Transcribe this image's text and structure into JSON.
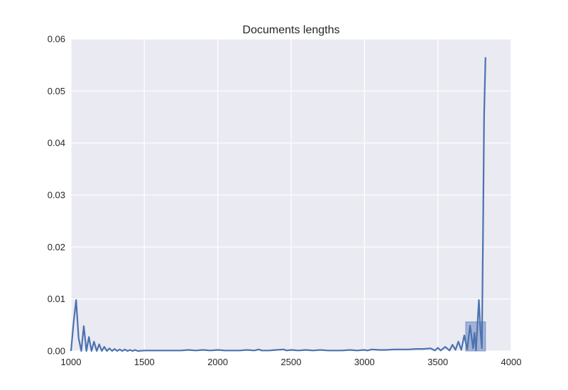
{
  "chart_data": {
    "type": "line",
    "title": "Documents lengths",
    "xlabel": "",
    "ylabel": "",
    "xlim": [
      1000,
      4000
    ],
    "ylim": [
      0,
      0.06
    ],
    "x_ticks": [
      1000,
      1500,
      2000,
      2500,
      3000,
      3500,
      4000
    ],
    "y_ticks": [
      0.0,
      0.01,
      0.02,
      0.03,
      0.04,
      0.05,
      0.06
    ],
    "x_tick_labels": [
      "1000",
      "1500",
      "2000",
      "2500",
      "3000",
      "3500",
      "4000"
    ],
    "y_tick_labels": [
      "0.00",
      "0.01",
      "0.02",
      "0.03",
      "0.04",
      "0.05",
      "0.06"
    ],
    "grid": true,
    "background": "#EAEAF2",
    "grid_color": "#FFFFFF",
    "line_color": "#4C72B0",
    "bar_color": "#4C72B0",
    "bars": [
      {
        "x0": 3690,
        "x1": 3825,
        "height": 0.0056
      }
    ],
    "series": [
      {
        "x": [
          1000,
          1018,
          1035,
          1052,
          1070,
          1087,
          1105,
          1122,
          1140,
          1157,
          1175,
          1192,
          1210,
          1227,
          1245,
          1262,
          1280,
          1297,
          1315,
          1332,
          1350,
          1367,
          1385,
          1402,
          1420,
          1437,
          1455,
          1500,
          1550,
          1600,
          1650,
          1700,
          1750,
          1800,
          1850,
          1900,
          1950,
          2000,
          2050,
          2100,
          2150,
          2200,
          2250,
          2280,
          2300,
          2350,
          2400,
          2450,
          2470,
          2500,
          2550,
          2600,
          2650,
          2700,
          2750,
          2800,
          2850,
          2900,
          2950,
          3000,
          3020,
          3050,
          3100,
          3150,
          3200,
          3250,
          3300,
          3350,
          3400,
          3450,
          3480,
          3500,
          3520,
          3550,
          3580,
          3600,
          3620,
          3640,
          3660,
          3680,
          3700,
          3720,
          3740,
          3750,
          3760,
          3780,
          3790,
          3800,
          3810,
          3815,
          3825
        ],
        "y": [
          0.0,
          0.0055,
          0.0098,
          0.0025,
          0.0,
          0.0048,
          0.0,
          0.0027,
          0.0,
          0.0018,
          0.0,
          0.0013,
          0.0,
          0.0008,
          0.0,
          0.0005,
          0.0,
          0.0004,
          0.0,
          0.0003,
          0.0,
          0.0003,
          0.0,
          0.0002,
          0.0,
          0.0002,
          0.0,
          0.0001,
          0.0001,
          0.0001,
          0.0001,
          0.0001,
          0.0001,
          0.0002,
          0.0001,
          0.0002,
          0.0001,
          0.0002,
          0.0001,
          0.0001,
          0.0001,
          0.0002,
          0.0001,
          0.0003,
          0.0001,
          0.0001,
          0.0002,
          0.0003,
          0.0001,
          0.0002,
          0.0001,
          0.0002,
          0.0001,
          0.0002,
          0.0001,
          0.0001,
          0.0001,
          0.0002,
          0.0001,
          0.0002,
          0.0001,
          0.0003,
          0.0002,
          0.0002,
          0.0003,
          0.0003,
          0.0003,
          0.0004,
          0.0004,
          0.0005,
          0.0001,
          0.0006,
          0.0001,
          0.0008,
          0.0001,
          0.0012,
          0.0002,
          0.0018,
          0.0002,
          0.003,
          0.0003,
          0.0049,
          0.0005,
          0.0035,
          0.0001,
          0.0098,
          0.004,
          0.0005,
          0.028,
          0.045,
          0.0565
        ]
      }
    ]
  }
}
